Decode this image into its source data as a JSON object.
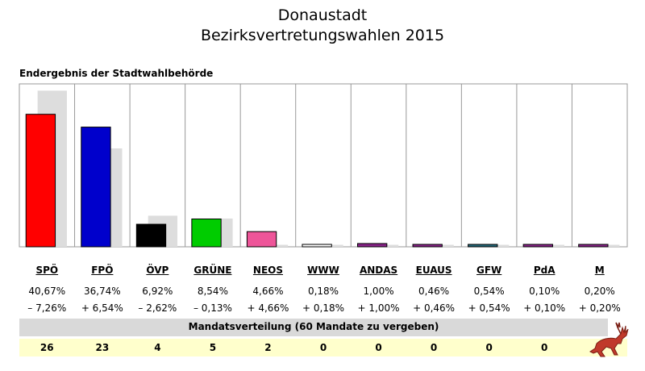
{
  "header": {
    "title_line1": "Donaustadt",
    "title_line2": "Bezirksvertretungswahlen 2015",
    "subtitle": "Endergebnis der Stadtwahlbehörde"
  },
  "chart_data": {
    "type": "bar",
    "categories": [
      "SPÖ",
      "FPÖ",
      "ÖVP",
      "GRÜNE",
      "NEOS",
      "WWW",
      "ANDAS",
      "EUAUS",
      "GFW",
      "PdA",
      "M"
    ],
    "series": [
      {
        "values": [
          40.67,
          36.74,
          6.92,
          8.54,
          4.66,
          0.18,
          1.0,
          0.46,
          0.54,
          0.1,
          0.2
        ]
      },
      {
        "values": [
          47.93,
          30.2,
          9.54,
          8.67,
          0.0,
          0.0,
          0.0,
          0.0,
          0.0,
          0.0,
          0.0
        ]
      }
    ],
    "colors": [
      "#ff0000",
      "#0000cc",
      "#000000",
      "#00cc00",
      "#ee5599",
      "#ffffff",
      "#882288",
      "#882288",
      "#226677",
      "#882288",
      "#882288"
    ],
    "comparison_color": "#dddddd",
    "ylim": [
      0,
      50
    ],
    "percent_labels": [
      "40,67%",
      "36,74%",
      "6,92%",
      "8,54%",
      "4,66%",
      "0,18%",
      "1,00%",
      "0,46%",
      "0,54%",
      "0,10%",
      "0,20%"
    ],
    "diff_labels": [
      "– 7,26%",
      "+ 6,54%",
      "– 2,62%",
      "– 0,13%",
      "+ 4,66%",
      "+ 0,18%",
      "+ 1,00%",
      "+ 0,46%",
      "+ 0,54%",
      "+ 0,10%",
      "+ 0,20%"
    ]
  },
  "mandates": {
    "header": "Mandatsverteilung (60 Mandate zu vergeben)",
    "values": [
      "26",
      "23",
      "4",
      "5",
      "2",
      "0",
      "0",
      "0",
      "0",
      "0",
      ""
    ]
  }
}
